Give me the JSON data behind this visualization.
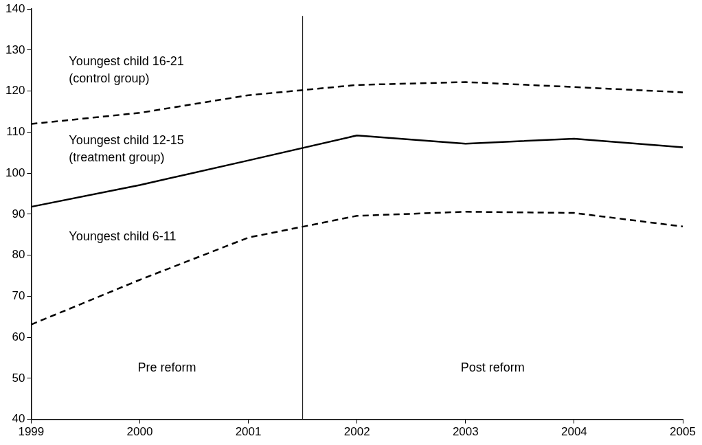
{
  "chart_data": {
    "type": "line",
    "xlim": [
      1999,
      2005
    ],
    "xticks": [
      1999,
      2000,
      2001,
      2002,
      2003,
      2004,
      2005
    ],
    "ylim": [
      40,
      140
    ],
    "yticks": [
      40,
      50,
      60,
      70,
      80,
      90,
      100,
      110,
      120,
      130,
      140
    ],
    "grid": false,
    "legend": false,
    "marker": "none",
    "series": [
      {
        "name": "Youngest child 16-21\n(control group)",
        "color": "#000000",
        "line_style": "dashed",
        "x": [
          1999,
          2000,
          2001,
          2002,
          2003,
          2004,
          2005
        ],
        "values": [
          112,
          114.7,
          119,
          121.5,
          122.2,
          121,
          119.7
        ]
      },
      {
        "name": "Youngest child 12-15\n(treatment group)",
        "color": "#000000",
        "line_style": "solid",
        "x": [
          1999,
          2000,
          2001,
          2002,
          2003,
          2004,
          2005
        ],
        "values": [
          91.8,
          97.1,
          103.1,
          109.2,
          107.2,
          108.4,
          106.3
        ]
      },
      {
        "name": "Youngest child 6-11",
        "color": "#000000",
        "line_style": "dashed",
        "x": [
          1999,
          2000,
          2001,
          2002,
          2003,
          2004,
          2005
        ],
        "values": [
          63.1,
          74,
          84.3,
          89.6,
          90.6,
          90.3,
          87
        ]
      }
    ],
    "ref_lines": [
      {
        "axis": "x",
        "value": 2001.5,
        "color": "#000000",
        "line_style": "solid"
      }
    ],
    "annotations": [
      "Pre reform",
      "Post reform"
    ]
  }
}
